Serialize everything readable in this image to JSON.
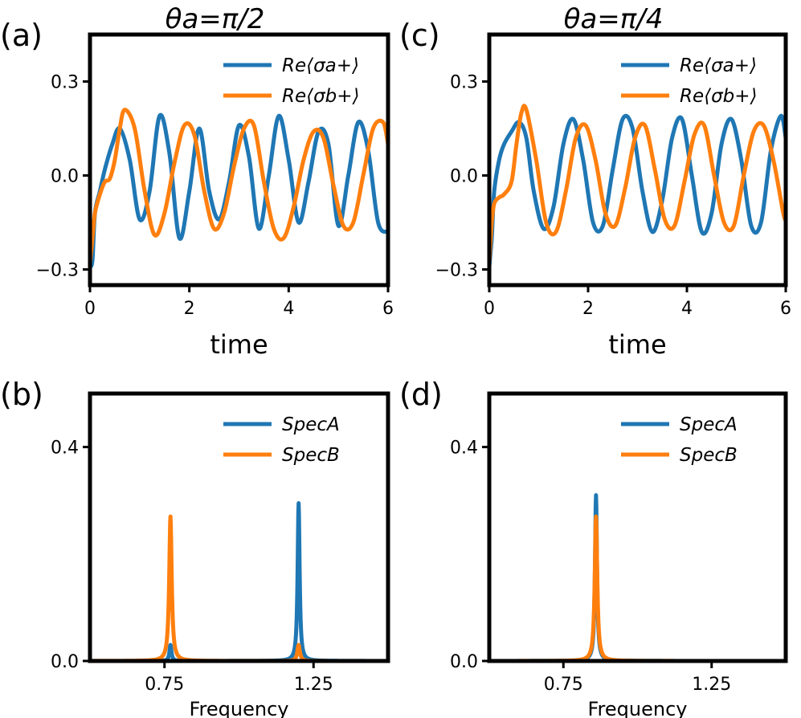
{
  "colors": {
    "series_a": "#1f77b4",
    "series_b": "#ff7f0e"
  },
  "chart_data": [
    {
      "id": "a",
      "type": "line",
      "panel_label": "(a)",
      "title": "θa=π/2",
      "xlabel": "time",
      "ylabel": "",
      "xlim": [
        0,
        6
      ],
      "ylim": [
        -0.35,
        0.45
      ],
      "xticks": [
        0,
        2,
        4,
        6
      ],
      "xtick_labels": [
        "0",
        "2",
        "4",
        "6"
      ],
      "yticks": [
        -0.3,
        0.0,
        0.3
      ],
      "ytick_labels": [
        "−0.3",
        "0.0",
        "0.3"
      ],
      "legend_position": "top-right",
      "series": [
        {
          "name": "Re⟨σa+⟩",
          "x": [
            0,
            0.05,
            0.1,
            0.2,
            0.3,
            0.45,
            0.6,
            0.8,
            1.0,
            1.2,
            1.4,
            1.6,
            1.8,
            2.0,
            2.2,
            2.4,
            2.6,
            2.8,
            3.0,
            3.2,
            3.4,
            3.6,
            3.8,
            4.0,
            4.2,
            4.4,
            4.6,
            4.8,
            5.0,
            5.2,
            5.4,
            5.6,
            5.8,
            6.0
          ],
          "y": [
            -0.29,
            -0.27,
            -0.12,
            -0.05,
            0.02,
            0.1,
            0.15,
            0.05,
            -0.14,
            -0.05,
            0.19,
            0.07,
            -0.2,
            -0.05,
            0.15,
            -0.05,
            -0.14,
            -0.02,
            0.16,
            0.06,
            -0.17,
            0.0,
            0.19,
            0.05,
            -0.15,
            -0.02,
            0.14,
            0.1,
            -0.16,
            0.0,
            0.17,
            0.08,
            -0.15,
            -0.18
          ]
        },
        {
          "name": "Re⟨σb+⟩",
          "x": [
            0,
            0.05,
            0.1,
            0.2,
            0.3,
            0.4,
            0.5,
            0.6,
            0.7,
            0.9,
            1.1,
            1.3,
            1.5,
            1.7,
            1.9,
            2.1,
            2.3,
            2.5,
            2.7,
            2.9,
            3.1,
            3.3,
            3.5,
            3.7,
            3.9,
            4.1,
            4.3,
            4.5,
            4.7,
            4.9,
            5.1,
            5.3,
            5.5,
            5.7,
            5.9,
            6.0
          ],
          "y": [
            -0.28,
            -0.2,
            -0.12,
            -0.06,
            -0.02,
            -0.01,
            0.05,
            0.15,
            0.21,
            0.15,
            -0.05,
            -0.19,
            -0.12,
            0.04,
            0.16,
            0.13,
            -0.05,
            -0.17,
            -0.12,
            0.03,
            0.15,
            0.16,
            -0.02,
            -0.17,
            -0.2,
            -0.1,
            0.05,
            0.14,
            0.12,
            -0.03,
            -0.16,
            -0.15,
            0.0,
            0.15,
            0.17,
            0.1
          ]
        }
      ]
    },
    {
      "id": "b",
      "type": "line",
      "panel_label": "(b)",
      "title": "",
      "xlabel": "Frequency",
      "ylabel": "",
      "xlim": [
        0.5,
        1.5
      ],
      "ylim": [
        0.0,
        0.5
      ],
      "xticks": [
        0.75,
        1.25
      ],
      "xtick_labels": [
        "0.75",
        "1.25"
      ],
      "yticks": [
        0.0,
        0.4
      ],
      "ytick_labels": [
        "0.0",
        "0.4"
      ],
      "legend_position": "top-right",
      "series": [
        {
          "name": "SpecA",
          "peaks": [
            {
              "x": 0.77,
              "y": 0.03,
              "w": 0.004
            },
            {
              "x": 1.2,
              "y": 0.295,
              "w": 0.004
            }
          ]
        },
        {
          "name": "SpecB",
          "peaks": [
            {
              "x": 0.77,
              "y": 0.27,
              "w": 0.005
            },
            {
              "x": 1.2,
              "y": 0.03,
              "w": 0.005
            }
          ]
        }
      ]
    },
    {
      "id": "c",
      "type": "line",
      "panel_label": "(c)",
      "title": "θa=π/4",
      "xlabel": "time",
      "ylabel": "",
      "xlim": [
        0,
        6
      ],
      "ylim": [
        -0.35,
        0.45
      ],
      "xticks": [
        0,
        2,
        4,
        6
      ],
      "xtick_labels": [
        "0",
        "2",
        "4",
        "6"
      ],
      "yticks": [
        -0.3,
        0.0,
        0.3
      ],
      "ytick_labels": [
        "−0.3",
        "0.0",
        "0.3"
      ],
      "legend_position": "top-right",
      "series": [
        {
          "name": "Re⟨σa+⟩",
          "x": [
            0,
            0.05,
            0.1,
            0.2,
            0.3,
            0.45,
            0.6,
            0.75,
            0.9,
            1.1,
            1.3,
            1.5,
            1.7,
            1.9,
            2.1,
            2.3,
            2.5,
            2.7,
            2.9,
            3.1,
            3.3,
            3.5,
            3.7,
            3.9,
            4.1,
            4.3,
            4.5,
            4.7,
            4.9,
            5.1,
            5.3,
            5.5,
            5.7,
            5.9,
            6.0
          ],
          "y": [
            -0.29,
            -0.2,
            -0.05,
            0.05,
            0.1,
            0.14,
            0.17,
            0.12,
            -0.05,
            -0.17,
            -0.1,
            0.1,
            0.18,
            0.05,
            -0.15,
            -0.16,
            0.02,
            0.18,
            0.15,
            -0.05,
            -0.18,
            -0.08,
            0.12,
            0.18,
            0.0,
            -0.18,
            -0.12,
            0.1,
            0.18,
            0.05,
            -0.16,
            -0.15,
            0.08,
            0.19,
            0.12
          ]
        },
        {
          "name": "Re⟨σb+⟩",
          "x": [
            0,
            0.05,
            0.1,
            0.2,
            0.3,
            0.45,
            0.55,
            0.65,
            0.75,
            0.95,
            1.15,
            1.35,
            1.55,
            1.75,
            1.95,
            2.15,
            2.35,
            2.55,
            2.75,
            2.95,
            3.15,
            3.35,
            3.55,
            3.75,
            3.95,
            4.15,
            4.35,
            4.55,
            4.75,
            4.95,
            5.15,
            5.35,
            5.55,
            5.75,
            5.95,
            6.0
          ],
          "y": [
            -0.28,
            -0.15,
            -0.09,
            -0.07,
            -0.06,
            -0.02,
            0.1,
            0.2,
            0.21,
            0.05,
            -0.15,
            -0.18,
            -0.05,
            0.12,
            0.16,
            0.05,
            -0.12,
            -0.16,
            -0.04,
            0.12,
            0.16,
            0.02,
            -0.14,
            -0.16,
            -0.02,
            0.13,
            0.16,
            0.0,
            -0.15,
            -0.16,
            0.0,
            0.14,
            0.16,
            0.05,
            -0.12,
            -0.14
          ]
        }
      ]
    },
    {
      "id": "d",
      "type": "line",
      "panel_label": "(d)",
      "title": "",
      "xlabel": "Frequency",
      "ylabel": "",
      "xlim": [
        0.5,
        1.5
      ],
      "ylim": [
        0.0,
        0.5
      ],
      "xticks": [
        0.75,
        1.25
      ],
      "xtick_labels": [
        "0.75",
        "1.25"
      ],
      "yticks": [
        0.0,
        0.4
      ],
      "ytick_labels": [
        "0.0",
        "0.4"
      ],
      "legend_position": "top-right",
      "series": [
        {
          "name": "SpecA",
          "peaks": [
            {
              "x": 0.86,
              "y": 0.31,
              "w": 0.004
            }
          ]
        },
        {
          "name": "SpecB",
          "peaks": [
            {
              "x": 0.86,
              "y": 0.27,
              "w": 0.005
            }
          ]
        }
      ]
    }
  ]
}
